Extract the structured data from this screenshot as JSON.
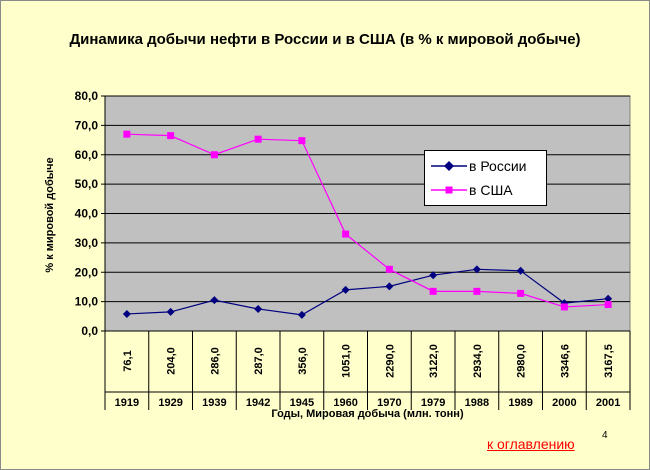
{
  "chart_data": {
    "type": "line",
    "title": "Динамика добычи нефти в России и в США (в % к мировой добыче)",
    "ylabel": "%  к мировой добыче",
    "xlabel": "Годы, Мировая добыча (млн. тонн)",
    "categories": [
      "1919",
      "1929",
      "1939",
      "1942",
      "1945",
      "1960",
      "1970",
      "1979",
      "1988",
      "1989",
      "2000",
      "2001"
    ],
    "world_production": [
      "76,1",
      "204,0",
      "286,0",
      "287,0",
      "356,0",
      "1051,0",
      "2290,0",
      "3122,0",
      "2934,0",
      "2980,0",
      "3346,6",
      "3167,5"
    ],
    "yticks": [
      "0,0",
      "10,0",
      "20,0",
      "30,0",
      "40,0",
      "50,0",
      "60,0",
      "70,0",
      "80,0"
    ],
    "ylim": [
      0,
      80
    ],
    "grid": true,
    "legend_position": "right",
    "series": [
      {
        "name": "в России",
        "color": "#000080",
        "marker": "diamond",
        "values": [
          5.8,
          6.5,
          10.5,
          7.5,
          5.5,
          14,
          15.2,
          19,
          21,
          20.5,
          9.5,
          11
        ]
      },
      {
        "name": "в США",
        "color": "#ff00ff",
        "marker": "square",
        "values": [
          67,
          66.5,
          60,
          65.3,
          64.8,
          33,
          21,
          13.5,
          13.5,
          12.8,
          8.2,
          9
        ]
      }
    ],
    "colors": {
      "plot_bg": "#c0c0c0",
      "slide_bg": "#ffffcc"
    }
  },
  "footer": {
    "toc_link": "к оглавлению",
    "page_number": "4"
  }
}
